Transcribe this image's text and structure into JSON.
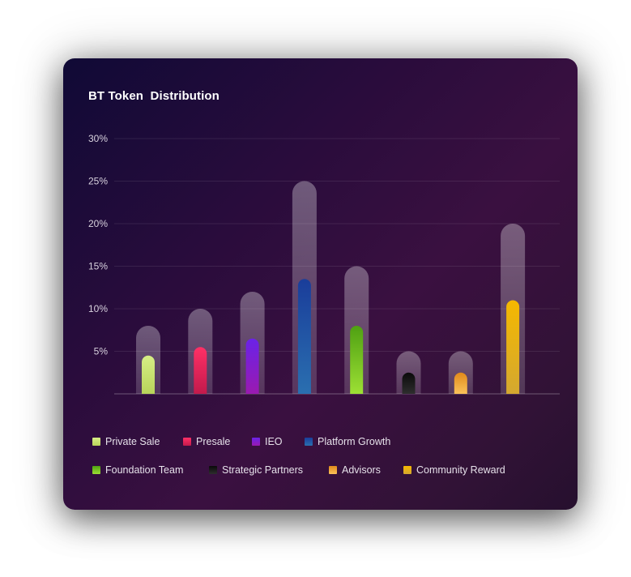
{
  "chart_data": {
    "type": "bar",
    "title": "BT Token  Distribution",
    "categories": [
      "Private Sale",
      "Presale",
      "IEO",
      "Platform Growth",
      "Foundation Team",
      "Strategic Partners",
      "Advisors",
      "Community Reward"
    ],
    "series": [
      {
        "values": [
          8,
          10,
          12,
          25,
          15,
          5,
          5,
          20
        ]
      },
      {
        "values": [
          4.5,
          5.5,
          6.5,
          13.5,
          8,
          2.5,
          2.5,
          11
        ]
      }
    ],
    "ylim": [
      0,
      30
    ],
    "yticks": [
      "30%",
      "25%",
      "20%",
      "15%",
      "10%",
      "5%"
    ],
    "ytick_values": [
      30,
      25,
      20,
      15,
      10,
      5
    ],
    "grid": true,
    "legend_position": "bottom",
    "colors": [
      {
        "top": "#d6ee86",
        "bottom": "#b8d45a"
      },
      {
        "top": "#ff3066",
        "bottom": "#c21a4c"
      },
      {
        "top": "#6a22e8",
        "bottom": "#9a1ab0"
      },
      {
        "top": "#1a3d9a",
        "bottom": "#2a6fb0"
      },
      {
        "top": "#4fa012",
        "bottom": "#9de034"
      },
      {
        "top": "#0a0a0a",
        "bottom": "#2e2e2e"
      },
      {
        "top": "#e08a1a",
        "bottom": "#fac25a"
      },
      {
        "top": "#f5b800",
        "bottom": "#d4a830"
      }
    ],
    "outer_bar_color": "#ffffff"
  }
}
